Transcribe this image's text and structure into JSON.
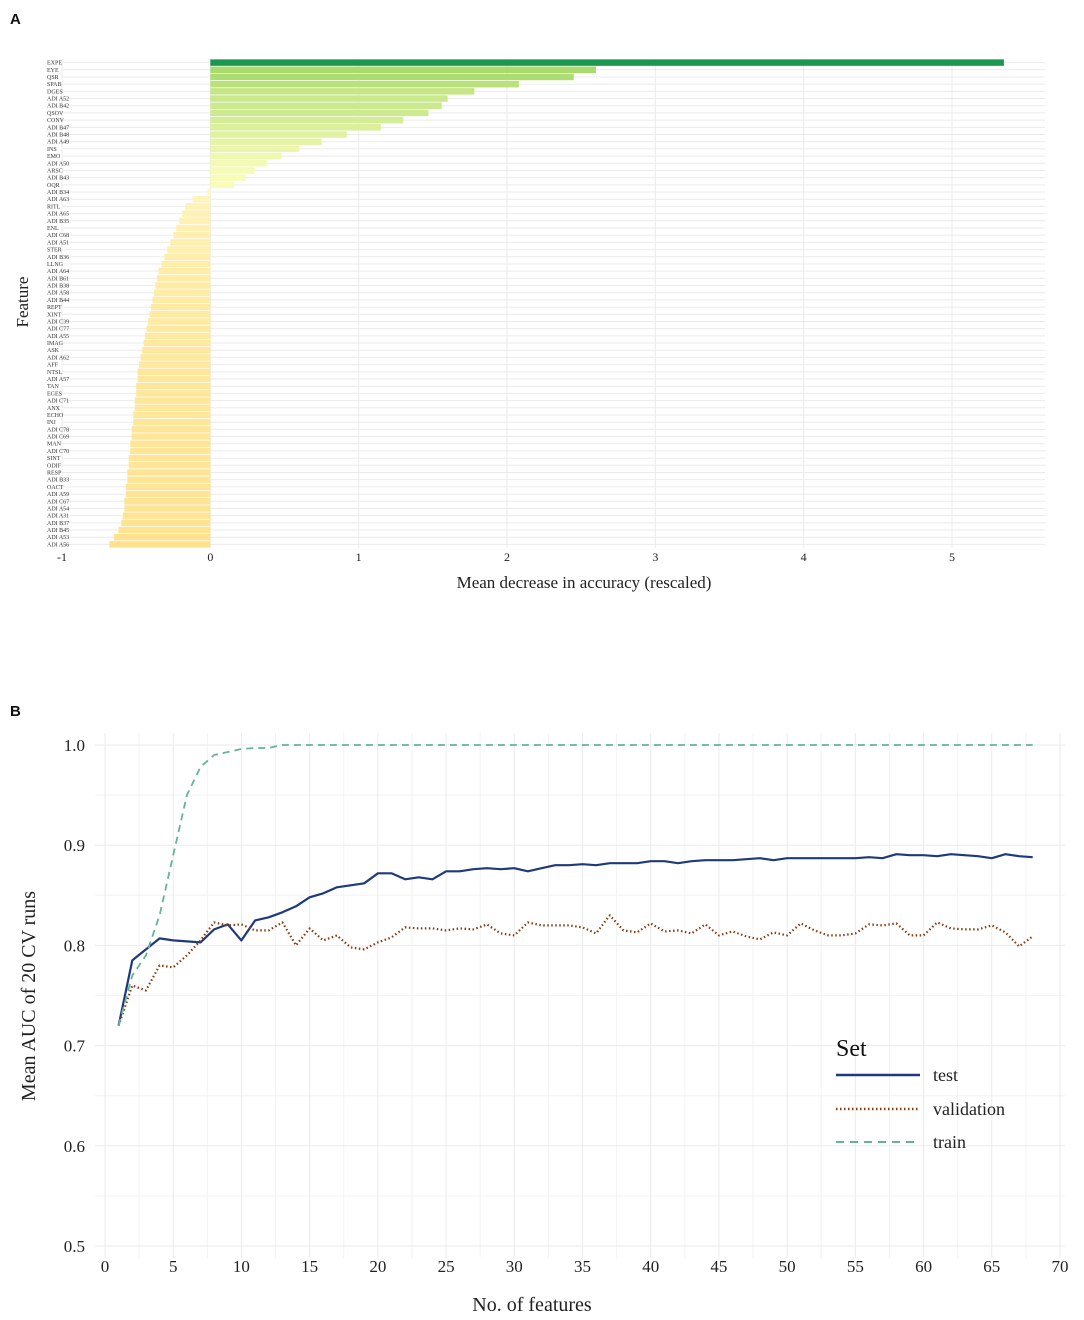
{
  "colors": {
    "grid": "#ebebeb",
    "bar_high": "#1a9850",
    "bar_mid": "#a6d96a",
    "bar_low": "#ffffbf",
    "bar_neg": "#fee08b",
    "test": "#1f3a7a",
    "validation": "#8b3a0f",
    "train": "#66b29a"
  },
  "chart_data": [
    {
      "type": "bar",
      "panel": "A",
      "orientation": "horizontal",
      "title": "",
      "xlabel": "Mean decrease in accuracy (rescaled)",
      "ylabel": "Feature",
      "xlim": [
        -1,
        5.6
      ],
      "xticks": [
        "-1",
        "0",
        "1",
        "2",
        "3",
        "4",
        "5"
      ],
      "categories": [
        "EXPE",
        "EYE",
        "QSR",
        "SPAB",
        "DGES",
        "ADI A52",
        "ADI B42",
        "QSOV",
        "CONV",
        "ADI B47",
        "ADI B48",
        "ADI A49",
        "INS",
        "EMO",
        "ADI A50",
        "ARSC",
        "ADI B43",
        "OQR",
        "ADI B34",
        "ADI A63",
        "RITL",
        "ADI A65",
        "ADI B35",
        "ENL",
        "ADI C68",
        "ADI A51",
        "STER",
        "ADI B36",
        "LLNG",
        "ADI A64",
        "ADI B61",
        "ADI B38",
        "ADI A58",
        "ADI B44",
        "REPT",
        "XINT",
        "ADI C39",
        "ADI C77",
        "ADI A55",
        "IMAG",
        "ASK",
        "ADI A62",
        "AFF",
        "NTSL",
        "ADI A57",
        "TAN",
        "EGES",
        "ADI C71",
        "ANX",
        "ECHO",
        "INJ",
        "ADI C78",
        "ADI C69",
        "MAN",
        "ADI C70",
        "SINT",
        "ODIF",
        "RESP",
        "ADI B33",
        "OACT",
        "ADI A59",
        "ADI C67",
        "ADI A54",
        "ADI A31",
        "ADI B37",
        "ADI B45",
        "ADI A53",
        "ADI A56"
      ],
      "values": [
        5.35,
        2.6,
        2.45,
        2.08,
        1.78,
        1.6,
        1.56,
        1.47,
        1.3,
        1.15,
        0.92,
        0.75,
        0.6,
        0.48,
        0.38,
        0.3,
        0.24,
        0.16,
        -0.02,
        -0.12,
        -0.17,
        -0.19,
        -0.21,
        -0.23,
        -0.25,
        -0.27,
        -0.29,
        -0.31,
        -0.33,
        -0.35,
        -0.36,
        -0.37,
        -0.38,
        -0.39,
        -0.4,
        -0.41,
        -0.42,
        -0.43,
        -0.44,
        -0.45,
        -0.46,
        -0.47,
        -0.48,
        -0.49,
        -0.49,
        -0.5,
        -0.5,
        -0.51,
        -0.51,
        -0.52,
        -0.52,
        -0.53,
        -0.53,
        -0.54,
        -0.54,
        -0.55,
        -0.55,
        -0.56,
        -0.56,
        -0.57,
        -0.57,
        -0.58,
        -0.58,
        -0.59,
        -0.6,
        -0.62,
        -0.65,
        -0.68
      ]
    },
    {
      "type": "line",
      "panel": "B",
      "title": "",
      "xlabel": "No. of features",
      "ylabel": "Mean  AUC of 20 CV runs",
      "xlim": [
        0,
        70
      ],
      "ylim": [
        0.5,
        1.0
      ],
      "xticks": [
        "0",
        "5",
        "10",
        "15",
        "20",
        "25",
        "30",
        "35",
        "40",
        "45",
        "50",
        "55",
        "60",
        "65",
        "70"
      ],
      "yticks": [
        "0.5",
        "0.6",
        "0.7",
        "0.8",
        "0.9",
        "1.0"
      ],
      "legend": {
        "title": "Set",
        "position": "right",
        "entries": [
          "test",
          "validation",
          "train"
        ]
      },
      "x": [
        1,
        2,
        3,
        4,
        5,
        6,
        7,
        8,
        9,
        10,
        11,
        12,
        13,
        14,
        15,
        16,
        17,
        18,
        19,
        20,
        21,
        22,
        23,
        24,
        25,
        26,
        27,
        28,
        29,
        30,
        31,
        32,
        33,
        34,
        35,
        36,
        37,
        38,
        39,
        40,
        41,
        42,
        43,
        44,
        45,
        46,
        47,
        48,
        49,
        50,
        51,
        52,
        53,
        54,
        55,
        56,
        57,
        58,
        59,
        60,
        61,
        62,
        63,
        64,
        65,
        66,
        67,
        68
      ],
      "series": [
        {
          "name": "test",
          "values": [
            0.72,
            0.785,
            0.796,
            0.807,
            0.805,
            0.804,
            0.803,
            0.816,
            0.821,
            0.805,
            0.825,
            0.828,
            0.833,
            0.839,
            0.848,
            0.852,
            0.858,
            0.86,
            0.862,
            0.872,
            0.872,
            0.866,
            0.868,
            0.866,
            0.874,
            0.874,
            0.876,
            0.877,
            0.876,
            0.877,
            0.874,
            0.877,
            0.88,
            0.88,
            0.881,
            0.88,
            0.882,
            0.882,
            0.882,
            0.884,
            0.884,
            0.882,
            0.884,
            0.885,
            0.885,
            0.885,
            0.886,
            0.887,
            0.885,
            0.887,
            0.887,
            0.887,
            0.887,
            0.887,
            0.887,
            0.888,
            0.887,
            0.891,
            0.89,
            0.89,
            0.889,
            0.891,
            0.89,
            0.889,
            0.887,
            0.891,
            0.889,
            0.888
          ]
        },
        {
          "name": "validation",
          "values": [
            0.72,
            0.76,
            0.755,
            0.78,
            0.778,
            0.79,
            0.805,
            0.823,
            0.82,
            0.821,
            0.815,
            0.815,
            0.823,
            0.8,
            0.817,
            0.805,
            0.81,
            0.798,
            0.796,
            0.803,
            0.808,
            0.818,
            0.817,
            0.817,
            0.815,
            0.817,
            0.816,
            0.821,
            0.812,
            0.81,
            0.823,
            0.82,
            0.82,
            0.82,
            0.818,
            0.812,
            0.83,
            0.815,
            0.813,
            0.822,
            0.814,
            0.815,
            0.812,
            0.821,
            0.81,
            0.814,
            0.809,
            0.806,
            0.813,
            0.81,
            0.822,
            0.815,
            0.81,
            0.81,
            0.812,
            0.821,
            0.82,
            0.822,
            0.81,
            0.81,
            0.823,
            0.817,
            0.816,
            0.816,
            0.82,
            0.813,
            0.799,
            0.809
          ]
        },
        {
          "name": "train",
          "values": [
            0.72,
            0.77,
            0.79,
            0.83,
            0.89,
            0.95,
            0.978,
            0.99,
            0.993,
            0.996,
            0.997,
            0.997,
            1.0,
            1.0,
            1.0,
            1.0,
            1.0,
            1.0,
            1.0,
            1.0,
            1.0,
            1.0,
            1.0,
            1.0,
            1.0,
            1.0,
            1.0,
            1.0,
            1.0,
            1.0,
            1.0,
            1.0,
            1.0,
            1.0,
            1.0,
            1.0,
            1.0,
            1.0,
            1.0,
            1.0,
            1.0,
            1.0,
            1.0,
            1.0,
            1.0,
            1.0,
            1.0,
            1.0,
            1.0,
            1.0,
            1.0,
            1.0,
            1.0,
            1.0,
            1.0,
            1.0,
            1.0,
            1.0,
            1.0,
            1.0,
            1.0,
            1.0,
            1.0,
            1.0,
            1.0,
            1.0,
            1.0,
            1.0
          ]
        }
      ]
    }
  ],
  "panels": {
    "a_letter": "A",
    "b_letter": "B"
  }
}
